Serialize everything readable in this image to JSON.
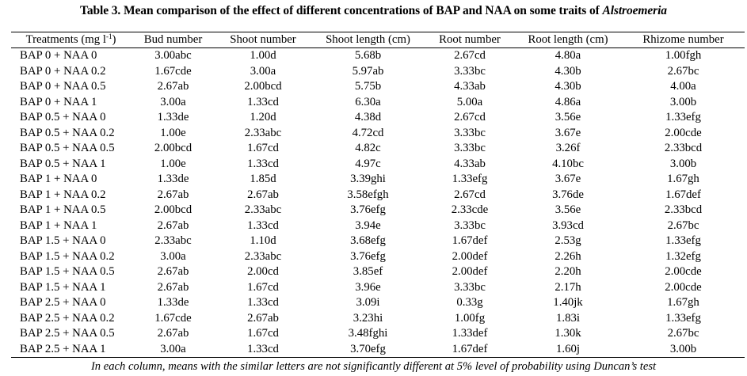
{
  "title": {
    "prefix": "Table 3. Mean comparison of the effect of different concentrations of BAP and NAA on some traits of ",
    "italic": "Alstroemeria"
  },
  "headers": {
    "treatments": "Treatments (mg l",
    "treatments_sup": "-1",
    "treatments_close": ")",
    "bud_number": "Bud number",
    "shoot_number": "Shoot number",
    "shoot_length": "Shoot length (cm)",
    "root_number": "Root number",
    "root_length": "Root length (cm)",
    "rhizome_number": "Rhizome number"
  },
  "rows": [
    {
      "treatment": "BAP 0 + NAA 0",
      "bud": "3.00abc",
      "shoot_n": "1.00d",
      "shoot_l": "5.68b",
      "root_n": "2.67cd",
      "root_l": "4.80a",
      "rhizome": "1.00fgh"
    },
    {
      "treatment": "BAP 0 + NAA 0.2",
      "bud": "1.67cde",
      "shoot_n": "3.00a",
      "shoot_l": "5.97ab",
      "root_n": "3.33bc",
      "root_l": "4.30b",
      "rhizome": "2.67bc"
    },
    {
      "treatment": "BAP 0 + NAA 0.5",
      "bud": "2.67ab",
      "shoot_n": "2.00bcd",
      "shoot_l": "5.75b",
      "root_n": "4.33ab",
      "root_l": "4.30b",
      "rhizome": "4.00a"
    },
    {
      "treatment": "BAP 0 + NAA 1",
      "bud": "3.00a",
      "shoot_n": "1.33cd",
      "shoot_l": "6.30a",
      "root_n": "5.00a",
      "root_l": "4.86a",
      "rhizome": "3.00b"
    },
    {
      "treatment": "BAP 0.5 + NAA 0",
      "bud": "1.33de",
      "shoot_n": "1.20d",
      "shoot_l": "4.38d",
      "root_n": "2.67cd",
      "root_l": "3.56e",
      "rhizome": "1.33efg"
    },
    {
      "treatment": "BAP 0.5 + NAA 0.2",
      "bud": "1.00e",
      "shoot_n": "2.33abc",
      "shoot_l": "4.72cd",
      "root_n": "3.33bc",
      "root_l": "3.67e",
      "rhizome": "2.00cde"
    },
    {
      "treatment": "BAP 0.5 + NAA 0.5",
      "bud": "2.00bcd",
      "shoot_n": "1.67cd",
      "shoot_l": "4.82c",
      "root_n": "3.33bc",
      "root_l": "3.26f",
      "rhizome": "2.33bcd"
    },
    {
      "treatment": "BAP 0.5 + NAA 1",
      "bud": "1.00e",
      "shoot_n": "1.33cd",
      "shoot_l": "4.97c",
      "root_n": "4.33ab",
      "root_l": "4.10bc",
      "rhizome": "3.00b"
    },
    {
      "treatment": "BAP 1 + NAA 0",
      "bud": "1.33de",
      "shoot_n": "1.85d",
      "shoot_l": "3.39ghi",
      "root_n": "1.33efg",
      "root_l": "3.67e",
      "rhizome": "1.67gh"
    },
    {
      "treatment": "BAP 1 + NAA 0.2",
      "bud": "2.67ab",
      "shoot_n": "2.67ab",
      "shoot_l": "3.58efgh",
      "root_n": "2.67cd",
      "root_l": "3.76de",
      "rhizome": "1.67def"
    },
    {
      "treatment": "BAP 1 + NAA 0.5",
      "bud": "2.00bcd",
      "shoot_n": "2.33abc",
      "shoot_l": "3.76efg",
      "root_n": "2.33cde",
      "root_l": "3.56e",
      "rhizome": "2.33bcd"
    },
    {
      "treatment": "BAP 1 + NAA 1",
      "bud": "2.67ab",
      "shoot_n": "1.33cd",
      "shoot_l": "3.94e",
      "root_n": "3.33bc",
      "root_l": "3.93cd",
      "rhizome": "2.67bc"
    },
    {
      "treatment": "BAP 1.5 + NAA 0",
      "bud": "2.33abc",
      "shoot_n": "1.10d",
      "shoot_l": "3.68efg",
      "root_n": "1.67def",
      "root_l": "2.53g",
      "rhizome": "1.33efg"
    },
    {
      "treatment": "BAP 1.5 + NAA 0.2",
      "bud": "3.00a",
      "shoot_n": "2.33abc",
      "shoot_l": "3.76efg",
      "root_n": "2.00def",
      "root_l": "2.26h",
      "rhizome": "1.32efg"
    },
    {
      "treatment": "BAP 1.5 + NAA 0.5",
      "bud": "2.67ab",
      "shoot_n": "2.00cd",
      "shoot_l": "3.85ef",
      "root_n": "2.00def",
      "root_l": "2.20h",
      "rhizome": "2.00cde"
    },
    {
      "treatment": "BAP 1.5 + NAA 1",
      "bud": "2.67ab",
      "shoot_n": "1.67cd",
      "shoot_l": "3.96e",
      "root_n": "3.33bc",
      "root_l": "2.17h",
      "rhizome": "2.00cde"
    },
    {
      "treatment": "BAP 2.5 + NAA 0",
      "bud": "1.33de",
      "shoot_n": "1.33cd",
      "shoot_l": "3.09i",
      "root_n": "0.33g",
      "root_l": "1.40jk",
      "rhizome": "1.67gh"
    },
    {
      "treatment": "BAP 2.5 + NAA 0.2",
      "bud": "1.67cde",
      "shoot_n": "2.67ab",
      "shoot_l": "3.23hi",
      "root_n": "1.00fg",
      "root_l": "1.83i",
      "rhizome": "1.33efg"
    },
    {
      "treatment": "BAP 2.5 + NAA 0.5",
      "bud": "2.67ab",
      "shoot_n": "1.67cd",
      "shoot_l": "3.48fghi",
      "root_n": "1.33def",
      "root_l": "1.30k",
      "rhizome": "2.67bc"
    },
    {
      "treatment": "BAP 2.5 + NAA 1",
      "bud": "3.00a",
      "shoot_n": "1.33cd",
      "shoot_l": "3.70efg",
      "root_n": "1.67def",
      "root_l": "1.60j",
      "rhizome": "3.00b"
    }
  ],
  "footnote": "In each column, means with the similar letters are not significantly different at 5% level of probability using Duncan’s test"
}
